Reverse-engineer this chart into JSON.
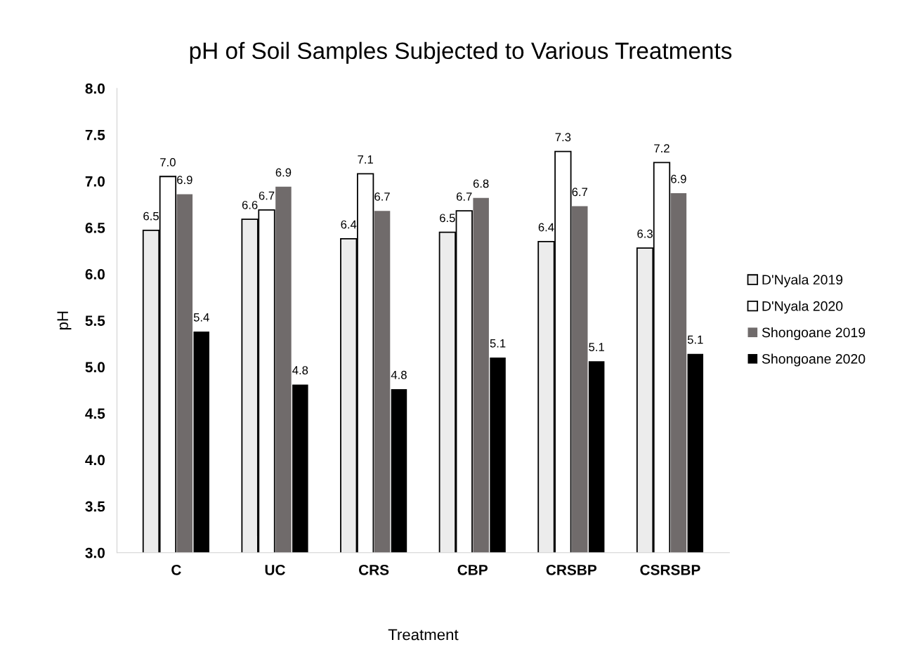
{
  "chart_data": {
    "type": "bar",
    "title": "pH of Soil Samples Subjected to Various Treatments",
    "xlabel": "Treatment",
    "ylabel": "pH",
    "categories": [
      "C",
      "UC",
      "CRS",
      "CBP",
      "CRSBP",
      "CSRSBP"
    ],
    "series": [
      {
        "name": "D'Nyala 2019",
        "color": "#ececec",
        "values": [
          6.47,
          6.59,
          6.38,
          6.45,
          6.35,
          6.28
        ],
        "value_labels": [
          "6.5",
          "6.6",
          "6.4",
          "6.5",
          "6.4",
          "6.3"
        ]
      },
      {
        "name": "D'Nyala 2020",
        "color": "#ffffff",
        "values": [
          7.05,
          6.69,
          7.08,
          6.68,
          7.32,
          7.2
        ],
        "value_labels": [
          "7.0",
          "6.7",
          "7.1",
          "6.7",
          "7.3",
          "7.2"
        ]
      },
      {
        "name": "Shongoane 2019",
        "color": "#706b6b",
        "values": [
          6.86,
          6.94,
          6.68,
          6.82,
          6.73,
          6.87
        ],
        "value_labels": [
          "6.9",
          "6.9",
          "6.7",
          "6.8",
          "6.7",
          "6.9"
        ]
      },
      {
        "name": "Shongoane 2020",
        "color": "#000000",
        "values": [
          5.38,
          4.81,
          4.76,
          5.1,
          5.06,
          5.14
        ],
        "value_labels": [
          "5.4",
          "4.8",
          "4.8",
          "5.1",
          "5.1",
          "5.1"
        ]
      }
    ],
    "ylim": [
      3.0,
      8.0
    ],
    "yticks": [
      {
        "value": 3,
        "label": "3.0"
      },
      {
        "value": 3.5,
        "label": "3.5"
      },
      {
        "value": 4,
        "label": "4.0"
      },
      {
        "value": 4.5,
        "label": "4.5"
      },
      {
        "value": 5,
        "label": "5.0"
      },
      {
        "value": 5.5,
        "label": "5.5"
      },
      {
        "value": 6,
        "label": "6.0"
      },
      {
        "value": 6.5,
        "label": "6.5"
      },
      {
        "value": 7,
        "label": "7.0"
      },
      {
        "value": 7.5,
        "label": "7.5"
      },
      {
        "value": 8,
        "label": "8.0"
      }
    ],
    "grid": false,
    "legend": "right"
  }
}
